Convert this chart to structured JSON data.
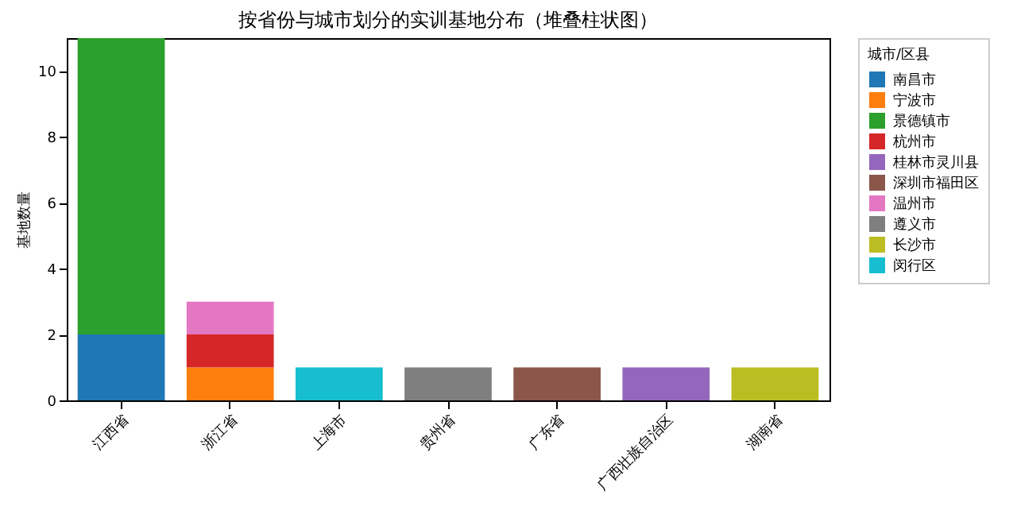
{
  "chart_data": {
    "type": "bar",
    "title": "按省份与城市划分的实训基地分布（堆叠柱状图）",
    "ylabel": "基地数量",
    "legend_title": "城市/区县",
    "categories": [
      "江西省",
      "浙江省",
      "上海市",
      "贵州省",
      "广东省",
      "广西壮族自治区",
      "湖南省"
    ],
    "stacked": true,
    "ylim": [
      0,
      11
    ],
    "yticks": [
      0,
      2,
      4,
      6,
      8,
      10
    ],
    "grid": false,
    "legend": "right",
    "series": [
      {
        "name": "南昌市",
        "color": "#1f77b4",
        "values": [
          2,
          null,
          null,
          null,
          null,
          null,
          null
        ]
      },
      {
        "name": "宁波市",
        "color": "#ff7f0e",
        "values": [
          null,
          1,
          null,
          null,
          null,
          null,
          null
        ]
      },
      {
        "name": "景德镇市",
        "color": "#2ca02c",
        "values": [
          9,
          null,
          null,
          null,
          null,
          null,
          null
        ]
      },
      {
        "name": "杭州市",
        "color": "#d62728",
        "values": [
          null,
          1,
          null,
          null,
          null,
          null,
          null
        ]
      },
      {
        "name": "桂林市灵川县",
        "color": "#9467bd",
        "values": [
          null,
          null,
          null,
          null,
          null,
          1,
          null
        ]
      },
      {
        "name": "深圳市福田区",
        "color": "#8c564b",
        "values": [
          null,
          null,
          null,
          null,
          1,
          null,
          null
        ]
      },
      {
        "name": "温州市",
        "color": "#e377c2",
        "values": [
          null,
          1,
          null,
          null,
          null,
          null,
          null
        ]
      },
      {
        "name": "遵义市",
        "color": "#7f7f7f",
        "values": [
          null,
          null,
          null,
          1,
          null,
          null,
          null
        ]
      },
      {
        "name": "长沙市",
        "color": "#bcbd22",
        "values": [
          null,
          null,
          null,
          null,
          null,
          null,
          1
        ]
      },
      {
        "name": "闵行区",
        "color": "#17becf",
        "values": [
          null,
          null,
          1,
          null,
          null,
          null,
          null
        ]
      }
    ]
  }
}
